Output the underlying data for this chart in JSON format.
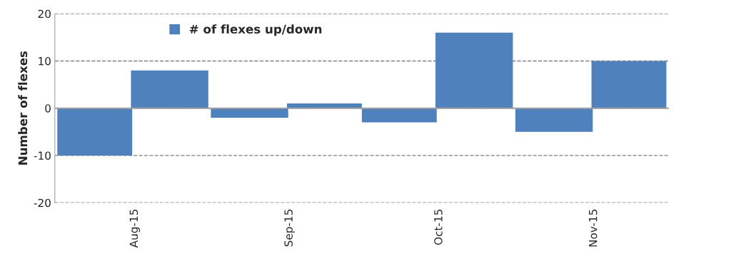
{
  "chart_data": {
    "type": "bar",
    "ylabel": "Number of flexes",
    "x": [
      "2015-07-24",
      "2015-08-08",
      "2015-08-24",
      "2015-09-08",
      "2015-09-23",
      "2015-10-08",
      "2015-10-24",
      "2015-11-08"
    ],
    "series": [
      {
        "name": "# of flexes up/down",
        "color": "#4f81bd",
        "values": [
          -10,
          8,
          -2,
          1,
          -3,
          16,
          -5,
          10
        ]
      }
    ],
    "xlim": [
      "2015-07-16",
      "2015-11-16"
    ],
    "xticks": [
      {
        "value": "2015-08-01",
        "label": "Aug-15"
      },
      {
        "value": "2015-09-01",
        "label": "Sep-15"
      },
      {
        "value": "2015-10-01",
        "label": "Oct-15"
      },
      {
        "value": "2015-11-01",
        "label": "Nov-15"
      }
    ],
    "ylim": [
      -20,
      20
    ],
    "yticks": [
      -20,
      -10,
      0,
      10,
      20
    ],
    "grid": "y",
    "legend": "top left"
  }
}
